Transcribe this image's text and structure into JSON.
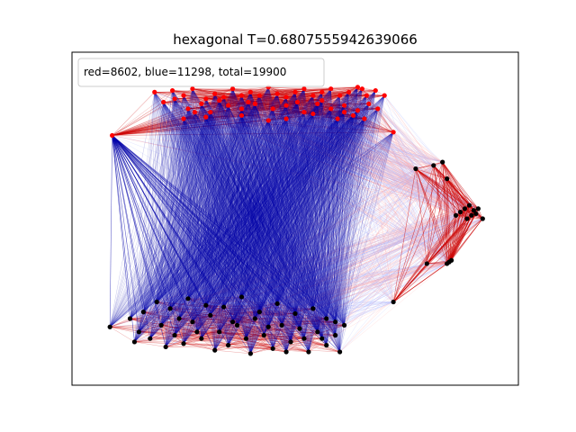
{
  "chart_data": {
    "type": "scatter",
    "title": "hexagonal T=0.6807555942639066",
    "xlabel": "",
    "ylabel": "",
    "axis_ticks": "hidden",
    "grid": false,
    "xlim": [
      0,
      1
    ],
    "ylim": [
      0,
      1
    ],
    "legend": {
      "placement": "top-left",
      "text": "red=8602, blue=11298, total=19900"
    },
    "counts": {
      "red": 8602,
      "blue": 11298,
      "total": 19900
    },
    "colors": {
      "red_node": "#ff0000",
      "black_node": "#000000",
      "red_edge": "#cc0000",
      "blue_edge": "#0000aa",
      "light_blue_edge": "#aab4ff",
      "pink_edge": "#ffaaaa"
    },
    "series": [
      {
        "color": "#ff0000",
        "points": [
          [
            0.09,
            0.75
          ],
          [
            0.185,
            0.88
          ],
          [
            0.225,
            0.885
          ],
          [
            0.25,
            0.87
          ],
          [
            0.27,
            0.89
          ],
          [
            0.3,
            0.86
          ],
          [
            0.32,
            0.875
          ],
          [
            0.34,
            0.865
          ],
          [
            0.36,
            0.89
          ],
          [
            0.38,
            0.87
          ],
          [
            0.4,
            0.88
          ],
          [
            0.42,
            0.87
          ],
          [
            0.44,
            0.895
          ],
          [
            0.46,
            0.875
          ],
          [
            0.48,
            0.865
          ],
          [
            0.5,
            0.88
          ],
          [
            0.52,
            0.89
          ],
          [
            0.54,
            0.87
          ],
          [
            0.56,
            0.88
          ],
          [
            0.58,
            0.89
          ],
          [
            0.6,
            0.87
          ],
          [
            0.62,
            0.88
          ],
          [
            0.64,
            0.895
          ],
          [
            0.66,
            0.87
          ],
          [
            0.68,
            0.885
          ],
          [
            0.23,
            0.86
          ],
          [
            0.26,
            0.83
          ],
          [
            0.29,
            0.845
          ],
          [
            0.31,
            0.82
          ],
          [
            0.35,
            0.84
          ],
          [
            0.38,
            0.83
          ],
          [
            0.41,
            0.845
          ],
          [
            0.45,
            0.83
          ],
          [
            0.48,
            0.84
          ],
          [
            0.52,
            0.82
          ],
          [
            0.55,
            0.845
          ],
          [
            0.58,
            0.83
          ],
          [
            0.61,
            0.84
          ],
          [
            0.64,
            0.825
          ],
          [
            0.665,
            0.845
          ],
          [
            0.25,
            0.8
          ],
          [
            0.3,
            0.805
          ],
          [
            0.38,
            0.81
          ],
          [
            0.44,
            0.795
          ],
          [
            0.48,
            0.8
          ],
          [
            0.54,
            0.815
          ],
          [
            0.595,
            0.8
          ],
          [
            0.63,
            0.81
          ],
          [
            0.655,
            0.8
          ],
          [
            0.685,
            0.83
          ],
          [
            0.205,
            0.85
          ],
          [
            0.275,
            0.82
          ],
          [
            0.33,
            0.855
          ],
          [
            0.395,
            0.85
          ],
          [
            0.505,
            0.85
          ],
          [
            0.56,
            0.855
          ],
          [
            0.61,
            0.82
          ],
          [
            0.7,
            0.87
          ],
          [
            0.72,
            0.76
          ],
          [
            0.65,
            0.89
          ]
        ]
      },
      {
        "color": "#000000",
        "points": [
          [
            0.085,
            0.175
          ],
          [
            0.13,
            0.2
          ],
          [
            0.15,
            0.16
          ],
          [
            0.175,
            0.14
          ],
          [
            0.2,
            0.18
          ],
          [
            0.23,
            0.15
          ],
          [
            0.25,
            0.125
          ],
          [
            0.27,
            0.19
          ],
          [
            0.29,
            0.14
          ],
          [
            0.31,
            0.21
          ],
          [
            0.33,
            0.16
          ],
          [
            0.35,
            0.12
          ],
          [
            0.37,
            0.18
          ],
          [
            0.39,
            0.14
          ],
          [
            0.41,
            0.2
          ],
          [
            0.43,
            0.15
          ],
          [
            0.45,
            0.11
          ],
          [
            0.47,
            0.18
          ],
          [
            0.49,
            0.13
          ],
          [
            0.51,
            0.17
          ],
          [
            0.53,
            0.1
          ],
          [
            0.55,
            0.16
          ],
          [
            0.57,
            0.12
          ],
          [
            0.59,
            0.19
          ],
          [
            0.6,
            0.1
          ],
          [
            0.16,
            0.22
          ],
          [
            0.19,
            0.25
          ],
          [
            0.22,
            0.23
          ],
          [
            0.26,
            0.26
          ],
          [
            0.3,
            0.24
          ],
          [
            0.34,
            0.235
          ],
          [
            0.38,
            0.265
          ],
          [
            0.42,
            0.22
          ],
          [
            0.46,
            0.245
          ],
          [
            0.5,
            0.215
          ],
          [
            0.54,
            0.23
          ],
          [
            0.57,
            0.2
          ],
          [
            0.14,
            0.13
          ],
          [
            0.21,
            0.115
          ],
          [
            0.32,
            0.105
          ],
          [
            0.4,
            0.095
          ],
          [
            0.48,
            0.1
          ],
          [
            0.56,
            0.14
          ],
          [
            0.59,
            0.15
          ],
          [
            0.61,
            0.18
          ],
          [
            0.24,
            0.2
          ],
          [
            0.36,
            0.19
          ],
          [
            0.44,
            0.175
          ],
          [
            0.52,
            0.14
          ],
          [
            0.28,
            0.16
          ],
          [
            0.77,
            0.65
          ],
          [
            0.81,
            0.66
          ],
          [
            0.83,
            0.67
          ],
          [
            0.84,
            0.62
          ],
          [
            0.87,
            0.52
          ],
          [
            0.88,
            0.53
          ],
          [
            0.885,
            0.5
          ],
          [
            0.89,
            0.54
          ],
          [
            0.895,
            0.51
          ],
          [
            0.9,
            0.525
          ],
          [
            0.905,
            0.515
          ],
          [
            0.91,
            0.53
          ],
          [
            0.92,
            0.5
          ],
          [
            0.86,
            0.51
          ],
          [
            0.795,
            0.365
          ],
          [
            0.84,
            0.365
          ],
          [
            0.845,
            0.37
          ],
          [
            0.85,
            0.375
          ],
          [
            0.72,
            0.25
          ]
        ]
      }
    ]
  }
}
